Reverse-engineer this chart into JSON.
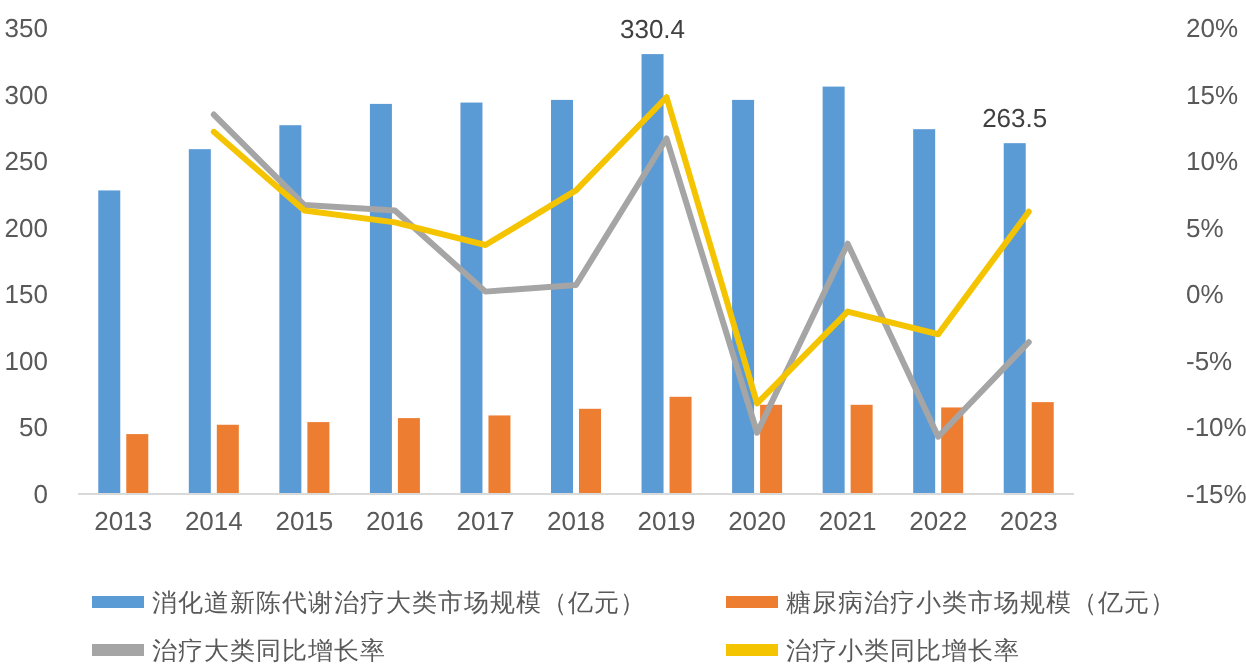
{
  "chart_data": {
    "type": "bar",
    "categories": [
      "2013",
      "2014",
      "2015",
      "2016",
      "2017",
      "2018",
      "2019",
      "2020",
      "2021",
      "2022",
      "2023"
    ],
    "series": [
      {
        "name": "消化道新陈代谢治疗大类市场规模（亿元）",
        "color": "#5b9bd5",
        "values": [
          228,
          259,
          277,
          293,
          294,
          296,
          330.4,
          296,
          306,
          274,
          263.5
        ],
        "value_labels": [
          null,
          null,
          null,
          null,
          null,
          null,
          "330.4",
          null,
          null,
          null,
          "263.5"
        ]
      },
      {
        "name": "糖尿病治疗小类市场规模（亿元）",
        "color": "#ed7d31",
        "values": [
          45,
          52,
          54,
          57,
          59,
          64,
          73,
          67,
          67,
          65,
          69
        ]
      },
      {
        "name": "治疗大类同比增长率",
        "type": "line",
        "axis": "y2",
        "color": "#a5a5a5",
        "values": [
          null,
          13.5,
          6.7,
          6.3,
          0.2,
          0.7,
          11.7,
          -10.4,
          3.8,
          -10.7,
          -3.6
        ]
      },
      {
        "name": "治疗小类同比增长率",
        "type": "line",
        "axis": "y2",
        "color": "#f5c400",
        "values": [
          null,
          12.2,
          6.3,
          5.4,
          3.7,
          7.8,
          14.8,
          -8.2,
          -1.3,
          -3.0,
          6.2
        ]
      }
    ],
    "ylim": [
      0,
      350
    ],
    "yticks": [
      0,
      50,
      100,
      150,
      200,
      250,
      300,
      350
    ],
    "y2lim": [
      -15,
      20
    ],
    "y2ticks": [
      {
        "value": -15,
        "label": "-15%"
      },
      {
        "value": -10,
        "label": "-10%"
      },
      {
        "value": -5,
        "label": "-5%"
      },
      {
        "value": 0,
        "label": "0%"
      },
      {
        "value": 5,
        "label": "5%"
      },
      {
        "value": 10,
        "label": "10%"
      },
      {
        "value": 15,
        "label": "15%"
      },
      {
        "value": 20,
        "label": "20%"
      }
    ],
    "legend": "bottom",
    "marker": "none"
  }
}
